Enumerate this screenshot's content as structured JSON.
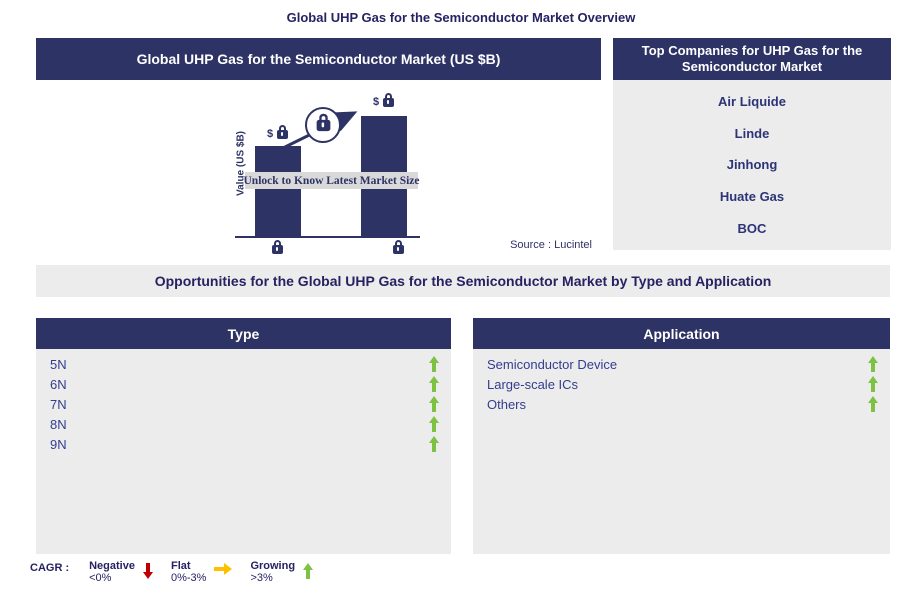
{
  "colors": {
    "navy": "#2E3366",
    "title": "#262262",
    "panel": "#ECECEC",
    "companyText": "#2C3377",
    "itemText": "#333D8F",
    "green": "#7DC242",
    "red": "#C00000",
    "orange": "#FFC000",
    "unlockBand": "#D9D9D9"
  },
  "title": "Global UHP Gas for the Semiconductor Market Overview",
  "market_panel": {
    "header": "Global UHP Gas for the Semiconductor Market (US $B)",
    "y_axis_label": "Value (US $B)",
    "bar_value_prefix": "$",
    "unlock_text": "Unlock to Know Latest Market Size",
    "source": "Source : Lucintel"
  },
  "chart_data": {
    "type": "bar",
    "title": "Global UHP Gas for the Semiconductor Market (US $B)",
    "ylabel": "Value (US $B)",
    "categories": [
      "locked-start-year",
      "locked-end-year"
    ],
    "values": [
      null,
      null
    ],
    "values_hidden": true,
    "relative_bar_heights": [
      0.69,
      0.92
    ],
    "trend": "increasing",
    "annotation": "Unlock to Know Latest Market Size",
    "source": "Source : Lucintel",
    "legend_position": "none",
    "grid": false
  },
  "top_companies": {
    "header": "Top Companies for UHP Gas for the Semiconductor Market",
    "companies": [
      "Air Liquide",
      "Linde",
      "Jinhong",
      "Huate Gas",
      "BOC"
    ]
  },
  "opportunities_title": "Opportunities for the Global UHP Gas for the Semiconductor Market by Type and Application",
  "type_panel": {
    "header": "Type",
    "items": [
      {
        "label": "5N",
        "trend": "growing"
      },
      {
        "label": "6N",
        "trend": "growing"
      },
      {
        "label": "7N",
        "trend": "growing"
      },
      {
        "label": "8N",
        "trend": "growing"
      },
      {
        "label": "9N",
        "trend": "growing"
      }
    ]
  },
  "application_panel": {
    "header": "Application",
    "items": [
      {
        "label": "Semiconductor Device",
        "trend": "growing"
      },
      {
        "label": "Large-scale ICs",
        "trend": "growing"
      },
      {
        "label": "Others",
        "trend": "growing"
      }
    ]
  },
  "cagr_legend": {
    "label": "CAGR :",
    "entries": [
      {
        "name": "Negative",
        "range": "<0%",
        "direction": "down"
      },
      {
        "name": "Flat",
        "range": "0%-3%",
        "direction": "right"
      },
      {
        "name": "Growing",
        "range": ">3%",
        "direction": "up"
      }
    ]
  }
}
